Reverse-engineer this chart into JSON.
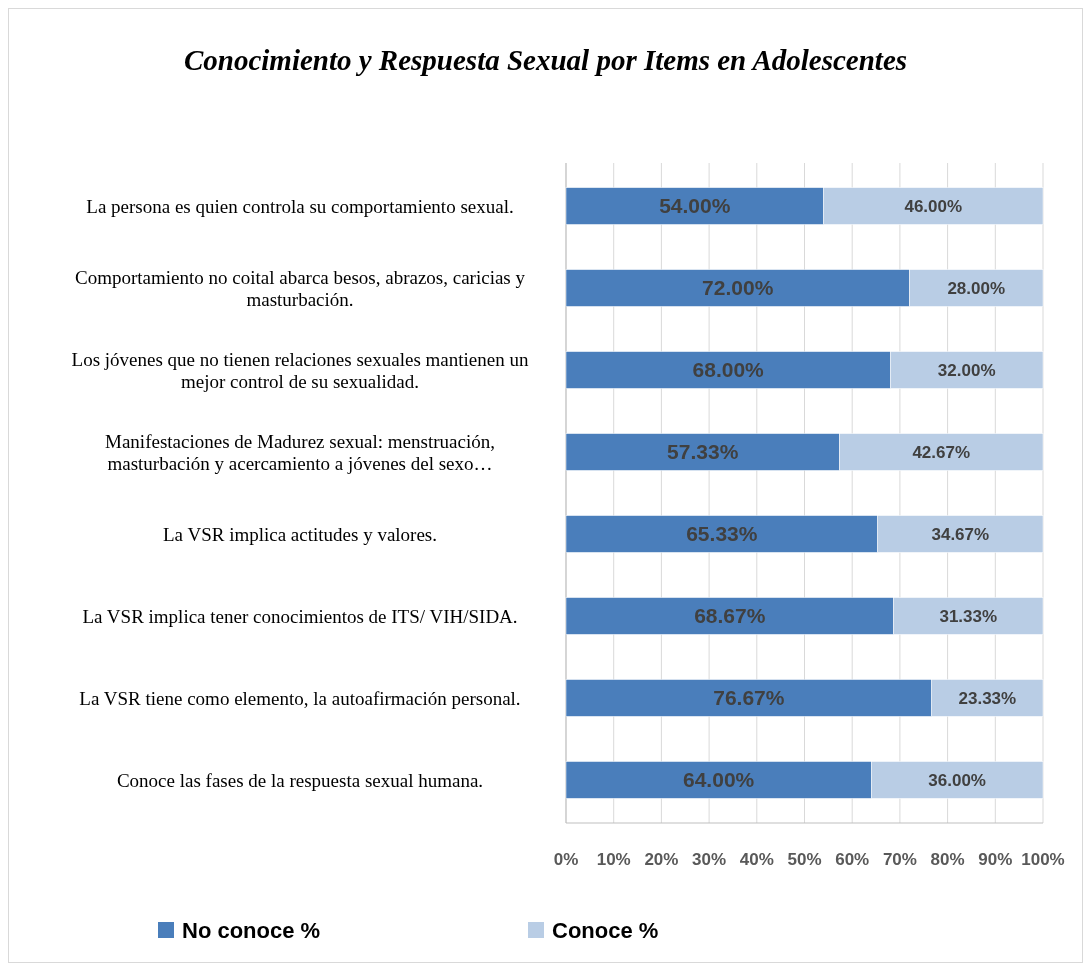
{
  "chart_data": {
    "type": "bar",
    "orientation": "horizontal",
    "stacked": true,
    "title": "Conocimiento y Respuesta Sexual por Items en Adolescentes",
    "categories": [
      "La persona es quien controla su comportamiento sexual.",
      "Comportamiento no coital abarca besos, abrazos, caricias y masturbación.",
      "Los jóvenes que no tienen relaciones sexuales mantienen un mejor control de su sexualidad.",
      "Manifestaciones de Madurez sexual: menstruación, masturbación y acercamiento a jóvenes del sexo…",
      "La VSR implica actitudes y valores.",
      "La VSR implica tener conocimientos de ITS/ VIH/SIDA.",
      "La VSR tiene como elemento, la autoafirmación personal.",
      "Conoce las fases de la respuesta sexual humana."
    ],
    "series": [
      {
        "name": "No conoce %",
        "color": "#4a7ebb",
        "values": [
          54,
          72,
          68,
          57.33,
          65.33,
          68.67,
          76.67,
          64
        ],
        "value_labels": [
          "54.00%",
          "72.00%",
          "68.00%",
          "57.33%",
          "65.33%",
          "68.67%",
          "76.67%",
          "64.00%"
        ]
      },
      {
        "name": "Conoce %",
        "color": "#b9cde5",
        "values": [
          46,
          28,
          32,
          42.67,
          34.67,
          31.33,
          23.33,
          36
        ],
        "value_labels": [
          "46.00%",
          "28.00%",
          "32.00%",
          "42.67%",
          "34.67%",
          "31.33%",
          "23.33%",
          "36.00%"
        ]
      }
    ],
    "xlim": [
      0,
      100
    ],
    "xticks": [
      {
        "value": 0,
        "label": "0%"
      },
      {
        "value": 10,
        "label": "10%"
      },
      {
        "value": 20,
        "label": "20%"
      },
      {
        "value": 30,
        "label": "30%"
      },
      {
        "value": 40,
        "label": "40%"
      },
      {
        "value": 50,
        "label": "50%"
      },
      {
        "value": 60,
        "label": "60%"
      },
      {
        "value": 70,
        "label": "70%"
      },
      {
        "value": 80,
        "label": "80%"
      },
      {
        "value": 90,
        "label": "90%"
      },
      {
        "value": 100,
        "label": "100%"
      }
    ],
    "grid": "x",
    "legend": "bottom"
  }
}
